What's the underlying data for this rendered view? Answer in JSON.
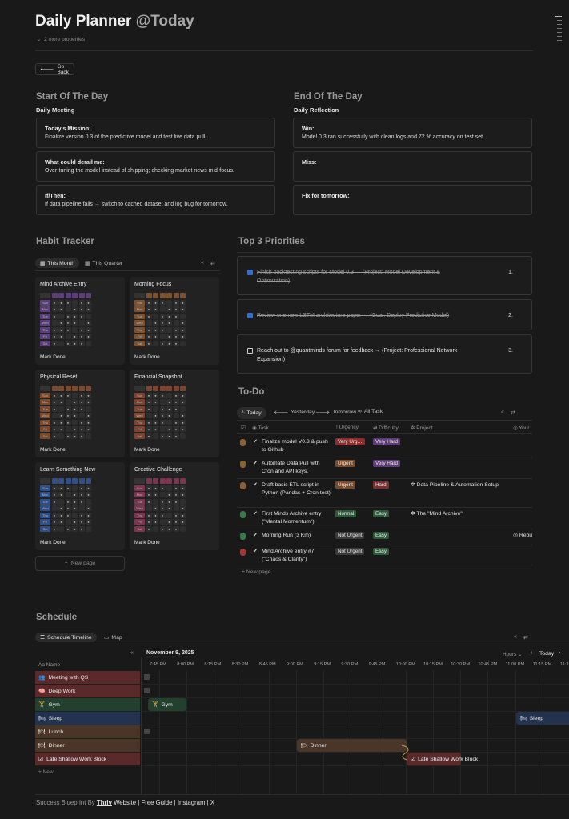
{
  "page": {
    "title": "Daily Planner",
    "title_mention": "@Today",
    "more_properties": "2 more properties",
    "go_back": "Go Back"
  },
  "start_of_day": {
    "heading": "Start Of The Day",
    "subheading": "Daily Meeting",
    "cards": [
      {
        "label": "Today's Mission:",
        "text": "Finalize version 0.3 of the predictive model and test live data pull."
      },
      {
        "label": "What could derail me:",
        "text": "Over-tuning the model instead of shipping; checking market news mid-focus."
      },
      {
        "label": "If/Then:",
        "text": "If data pipeline fails → switch to cached dataset and log bug for tomorrow."
      }
    ]
  },
  "end_of_day": {
    "heading": "End Of The Day",
    "subheading": "Daily Reflection",
    "cards": [
      {
        "label": "Win:",
        "text": "Model 0.3 ran successfully with clean logs and 72 % accuracy on test set."
      },
      {
        "label": "Miss:",
        "text": ""
      },
      {
        "label": "Fix for tomorrow:",
        "text": ""
      }
    ]
  },
  "habit_tracker": {
    "heading": "Habit Tracker",
    "tabs": [
      "This Month",
      "This Quarter"
    ],
    "mark_done": "Mark Done",
    "new_page": "New page",
    "weekdays": [
      "Sun",
      "Mon",
      "Tue",
      "Wed",
      "Thu",
      "Fri",
      "Sat"
    ],
    "habits": [
      {
        "name": "Mind Archive Entry",
        "color": "#5b3f7a"
      },
      {
        "name": "Morning Focus",
        "color": "#7a5230"
      },
      {
        "name": "Physical Reset",
        "color": "#7a4a30"
      },
      {
        "name": "Financial Snapshot",
        "color": "#7a4430"
      },
      {
        "name": "Learn Something New",
        "color": "#2f4f86"
      },
      {
        "name": "Creative Challenge",
        "color": "#7a3550"
      }
    ]
  },
  "priorities": {
    "heading": "Top 3 Priorities",
    "items": [
      {
        "text": "Finish backtesting scripts for Model 0.3 → (Project: Model Development & Optimization)",
        "num": "1.",
        "done": true
      },
      {
        "text": "Review one new LSTM architecture paper → (Goal: Deploy Predictive Model)",
        "num": "2.",
        "done": true
      },
      {
        "text": "Reach out to @quantminds forum for feedback → (Project: Professional Network Expansion)",
        "num": "3.",
        "done": false
      }
    ]
  },
  "todo": {
    "heading": "To-Do",
    "tabs": [
      "Today",
      "Yesterday",
      "Tomorrow",
      "All Task"
    ],
    "columns": [
      "Task",
      "Urgency",
      "Difficulty",
      "Project",
      "Your"
    ],
    "new_page": "New page",
    "rows": [
      {
        "task": "Finalize model V0.3 & push to Github",
        "urgency": "Very Urg…",
        "urgency_color": "#8a2e2e",
        "difficulty": "Very Hard",
        "difficulty_color": "#5e3c78",
        "project": "",
        "dot": "#8a6238"
      },
      {
        "task": "Automate Data Pull with Cron and API keys.",
        "urgency": "Urgent",
        "urgency_color": "#7a4a2a",
        "difficulty": "Very Hard",
        "difficulty_color": "#5e3c78",
        "project": "",
        "dot": "#8a6238"
      },
      {
        "task": "Draft basic ETL script in Python (Pandas + Cron test)",
        "urgency": "Urgent",
        "urgency_color": "#7a4a2a",
        "difficulty": "Hard",
        "difficulty_color": "#7a3030",
        "project": "Data Pipeline & Automation Setup",
        "dot": "#8a6238"
      },
      {
        "task": "First Minds Archive entry (\"Mental Momentum\")",
        "urgency": "Normal",
        "urgency_color": "#2e5a3a",
        "difficulty": "Easy",
        "difficulty_color": "#2e5a3a",
        "project": "The \"Mind Archive\"",
        "dot": "#3a7a4a"
      },
      {
        "task": "Morning Run (3 Km)",
        "urgency": "Not Urgent",
        "urgency_color": "#3a3a3a",
        "difficulty": "Easy",
        "difficulty_color": "#2e5a3a",
        "project": "",
        "extra": "Rebu",
        "dot": "#3a7a4a"
      },
      {
        "task": "Mind Archive entry #7 (\"Chaos & Clarity\")",
        "urgency": "Not Urgent",
        "urgency_color": "#3a3a3a",
        "difficulty": "Easy",
        "difficulty_color": "#2e5a3a",
        "project": "",
        "dot": "#a03a3a"
      }
    ]
  },
  "schedule": {
    "heading": "Schedule",
    "tabs": [
      "Schedule Timeline",
      "Map"
    ],
    "date": "November 9, 2025",
    "hours_label": "Hours",
    "today_label": "Today",
    "name_col": "Name",
    "new_label": "New",
    "ticks": [
      "7:45 PM",
      "8:00 PM",
      "8:15 PM",
      "8:30 PM",
      "8:45 PM",
      "9:00 PM",
      "9:15 PM",
      "9:30 PM",
      "9:45 PM",
      "10:00 PM",
      "10:15 PM",
      "10:30 PM",
      "10:45 PM",
      "11:00 PM",
      "11:15 PM",
      "11:3"
    ],
    "rows": [
      {
        "name": "Meeting with QS",
        "color": "#5a2a2a",
        "icon": "👥"
      },
      {
        "name": "Deep Work",
        "color": "#5a2a2a",
        "icon": "🧠"
      },
      {
        "name": "Gym",
        "color": "#23402e",
        "icon": "🏋"
      },
      {
        "name": "Sleep",
        "color": "#23324f",
        "icon": "🛏"
      },
      {
        "name": "Lunch",
        "color": "#4a3628",
        "icon": "🍽"
      },
      {
        "name": "Dinner",
        "color": "#4a3628",
        "icon": "🍽"
      },
      {
        "name": "Late Shallow Work Block",
        "color": "#5a2a2a",
        "icon": "☑"
      }
    ],
    "bars": {
      "gym": "Gym",
      "sleep": "Sleep",
      "dinner": "Dinner",
      "late": "Late Shallow Work Block"
    }
  },
  "footer": {
    "prefix": "Success Blueprint By",
    "brand": "Thriv",
    "links": "Website | Free Guide | Instagram | X"
  }
}
